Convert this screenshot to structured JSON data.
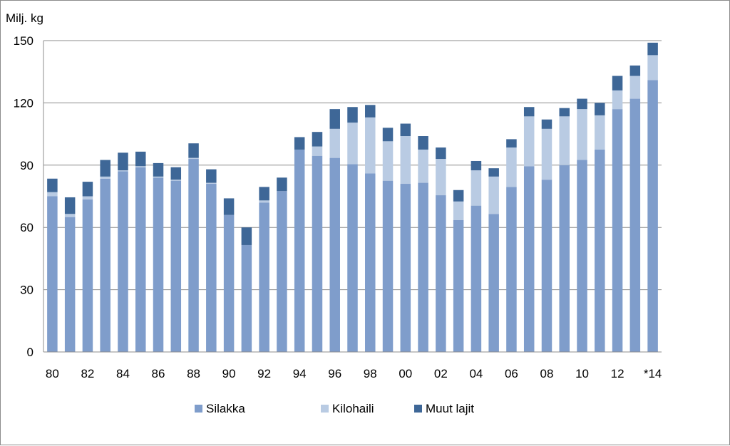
{
  "chart_data": {
    "type": "bar",
    "stacked": true,
    "ylabel": "Milj. kg",
    "ylim": [
      0,
      150
    ],
    "yticks": [
      0,
      30,
      60,
      90,
      120,
      150
    ],
    "grid": true,
    "legend_position": "bottom",
    "categories": [
      "80",
      "81",
      "82",
      "83",
      "84",
      "85",
      "86",
      "87",
      "88",
      "89",
      "90",
      "91",
      "92",
      "93",
      "94",
      "95",
      "96",
      "97",
      "98",
      "99",
      "00",
      "01",
      "02",
      "03",
      "04",
      "05",
      "06",
      "07",
      "08",
      "09",
      "10",
      "11",
      "12",
      "13",
      "*14"
    ],
    "x_tick_labels": [
      "80",
      "",
      "82",
      "",
      "84",
      "",
      "86",
      "",
      "88",
      "",
      "90",
      "",
      "92",
      "",
      "94",
      "",
      "96",
      "",
      "98",
      "",
      "00",
      "",
      "02",
      "",
      "04",
      "",
      "06",
      "",
      "08",
      "",
      "10",
      "",
      "12",
      "",
      "*14"
    ],
    "series": [
      {
        "name": "Silakka",
        "color": "#7f9dcb",
        "values": [
          75,
          65,
          73.5,
          83.5,
          87,
          89,
          84,
          82.5,
          93,
          81,
          66,
          51.5,
          72,
          77.5,
          97.5,
          94.5,
          93.5,
          90.5,
          86,
          82.5,
          81,
          81.5,
          75.5,
          63.5,
          70.5,
          66.5,
          79.5,
          89.5,
          83,
          90,
          92.5,
          97.5,
          117,
          122,
          131
        ]
      },
      {
        "name": "Kilohaili",
        "color": "#b9cbe3",
        "values": [
          2,
          1.5,
          1.5,
          1,
          0.5,
          0.5,
          0.5,
          0.5,
          0.5,
          0.5,
          0,
          0,
          1,
          0,
          0,
          4.5,
          14,
          20,
          27,
          19,
          23,
          16,
          17.5,
          9,
          17,
          18,
          19,
          24,
          24.5,
          23.5,
          24.5,
          16.5,
          9,
          11,
          12
        ]
      },
      {
        "name": "Muut lajit",
        "color": "#3e6797",
        "values": [
          6.5,
          8,
          7,
          8,
          8.5,
          7,
          6.5,
          6,
          7,
          6.5,
          8,
          8.5,
          6.5,
          6.5,
          6,
          7,
          9.5,
          7.5,
          6,
          6.5,
          6,
          6.5,
          5.5,
          5.5,
          4.5,
          4,
          4,
          4.5,
          4.5,
          4,
          5,
          6,
          7,
          5,
          6
        ]
      }
    ]
  }
}
